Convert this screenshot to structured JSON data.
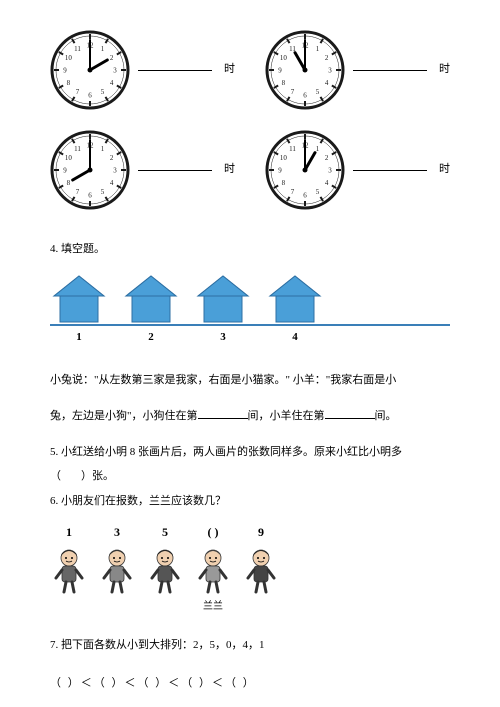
{
  "clocks": {
    "label_suffix": "时",
    "items": [
      {
        "hour": 2,
        "minute": 0
      },
      {
        "hour": 11,
        "minute": 0
      },
      {
        "hour": 8,
        "minute": 0
      },
      {
        "hour": 1,
        "minute": 0
      }
    ],
    "face_stroke": "#1a1a1a",
    "face_fill": "#ffffff",
    "tick_color": "#1a1a1a",
    "hand_color": "#000000",
    "number_fontsize": 7
  },
  "q4": {
    "title": "4. 填空题。",
    "house_count": 4,
    "house_labels": [
      "1",
      "2",
      "3",
      "4"
    ],
    "house_fill": "#4a9fd8",
    "house_stroke": "#2d6fa3",
    "line1": "小兔说：\"从左数第三家是我家，右面是小猫家。\" 小羊：\"我家右面是小",
    "line2_prefix": "兔，左边是小狗\"，小狗住在第",
    "line2_mid": "间，小羊住在第",
    "line2_suffix": "间。"
  },
  "q5": {
    "text_prefix": "5. 小红送给小明 8 张画片后，两人画片的张数同样多。原来小红比小明多",
    "paren_open": "（",
    "paren_close": "）张。"
  },
  "q6": {
    "title": "6. 小朋友们在报数，兰兰应该数几？",
    "nums": [
      "1",
      "3",
      "5",
      "(   )",
      "9"
    ],
    "lanlan_label": "兰兰",
    "lanlan_index": 3
  },
  "q7": {
    "title": "7. 把下面各数从小到大排列：2，5，0，4，1",
    "pattern": "（    ）＜（    ）＜（    ）＜（    ）＜（    ）"
  }
}
